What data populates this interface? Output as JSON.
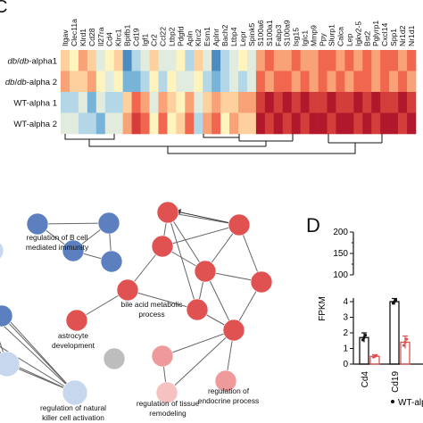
{
  "panel_top_letter": "C",
  "panel_d_letter": "D",
  "heatmap": {
    "genes": [
      "Itgav",
      "Clec11a",
      "Klrd1",
      "Cd28",
      "Il27ra",
      "Cd4",
      "Klrc1",
      "Bpifb1",
      "Cd19",
      "Igf1",
      "Cr2",
      "Ccl22",
      "Ltbp2",
      "Pdgfd",
      "Apln",
      "Klrc2",
      "Esm1",
      "Aplnr",
      "Bach2",
      "Ltbp4",
      "Lepr",
      "Spink5",
      "S100a6",
      "S100a1",
      "Fabp3",
      "S100a9",
      "Isg15",
      "Iglc1",
      "Mmp9",
      "Ppy",
      "Slurp1",
      "Calca",
      "Lep",
      "Igkv2-5",
      "Bst2",
      "Pglyrp1",
      "Cxcl14",
      "Spp1",
      "Nr1d2",
      "Nr1d1"
    ],
    "samples": [
      {
        "label": "db/db-alpha1",
        "prefix": "",
        "italic": "db",
        "sep": "/",
        "italic2": "db",
        "suffix": "-alpha1"
      },
      {
        "label": "db/db-alpha 2",
        "prefix": "",
        "italic": "db",
        "sep": "/",
        "italic2": "db",
        "suffix": "-alpha 2"
      },
      {
        "label": "WT-alpha 1",
        "prefix": "WT-alpha 1"
      },
      {
        "label": "WT-alpha 2",
        "prefix": "WT-alpha 2"
      }
    ],
    "matrix": [
      [
        0.4,
        0.5,
        0.3,
        0.4,
        0.6,
        0.5,
        0.4,
        0.9,
        0.7,
        0.6,
        0.4,
        0.6,
        0.6,
        0.5,
        0.7,
        0.4,
        0.6,
        0.9,
        0.7,
        0.6,
        0.5,
        0.6,
        0.3,
        0.2,
        0.3,
        0.3,
        0.2,
        0.3,
        0.3,
        0.2,
        0.2,
        0.3,
        0.2,
        0.3,
        0.2,
        0.3,
        0.2,
        0.2,
        0.3,
        0.2
      ],
      [
        0.3,
        0.4,
        0.4,
        0.3,
        0.5,
        0.6,
        0.5,
        0.8,
        0.8,
        0.7,
        0.5,
        0.7,
        0.5,
        0.6,
        0.6,
        0.5,
        0.7,
        0.8,
        0.7,
        0.6,
        0.7,
        0.6,
        0.2,
        0.3,
        0.2,
        0.2,
        0.3,
        0.2,
        0.3,
        0.2,
        0.3,
        0.2,
        0.3,
        0.2,
        0.2,
        0.3,
        0.2,
        0.3,
        0.2,
        0.3
      ],
      [
        0.7,
        0.7,
        0.6,
        0.8,
        0.6,
        0.7,
        0.7,
        0.4,
        0.2,
        0.3,
        0.6,
        0.3,
        0.4,
        0.5,
        0.3,
        0.6,
        0.4,
        0.3,
        0.4,
        0.4,
        0.3,
        0.3,
        0.1,
        0.0,
        0.1,
        0.0,
        0.1,
        0.0,
        0.1,
        0.1,
        0.0,
        0.1,
        0.1,
        0.0,
        0.1,
        0.0,
        0.1,
        0.1,
        0.0,
        0.1
      ],
      [
        0.6,
        0.6,
        0.7,
        0.7,
        0.8,
        0.6,
        0.6,
        0.3,
        0.1,
        0.2,
        0.5,
        0.2,
        0.5,
        0.4,
        0.2,
        0.7,
        0.3,
        0.2,
        0.5,
        0.3,
        0.4,
        0.4,
        0.0,
        0.1,
        0.0,
        0.1,
        0.0,
        0.1,
        0.0,
        0.0,
        0.1,
        0.0,
        0.0,
        0.1,
        0.0,
        0.1,
        0.0,
        0.0,
        0.1,
        0.0
      ]
    ]
  },
  "network": {
    "labels": {
      "b_cell": [
        "regulation of B cell",
        "mediated immunity"
      ],
      "bile": [
        "bile acid metabolic",
        "process"
      ],
      "astro": [
        "astrocyte",
        "development"
      ],
      "nk": [
        "regulation of natural",
        "killer cell activation"
      ],
      "endocrine": [
        "regulation of",
        "endocrine process"
      ],
      "tissue": [
        "regulation of tissue",
        "remodeling"
      ]
    },
    "colors": {
      "blue": "#5b7fbf",
      "red": "#e05252",
      "pink": "#ef9a9a",
      "lightpink": "#f6c1c1",
      "grey": "#bdbdbd",
      "lightblue": "#c7d8ee"
    }
  },
  "chart_data": {
    "type": "bar",
    "categories": [
      "Cd4",
      "Cd19"
    ],
    "series": [
      {
        "name": "WT-alpha",
        "values": [
          1.7,
          4.0
        ],
        "errors": [
          0.3,
          0.2
        ],
        "color": "#111111"
      },
      {
        "values": [
          0.5,
          1.4
        ],
        "errors": [
          0.1,
          0.4
        ],
        "color": "#e05252"
      }
    ],
    "ylabel": "FPKM",
    "yticks_lower": [
      "0",
      "1",
      "2",
      "3",
      "4"
    ],
    "yticks_upper": [
      "100",
      "150",
      "200"
    ],
    "legend_label": "WT-alpha"
  }
}
